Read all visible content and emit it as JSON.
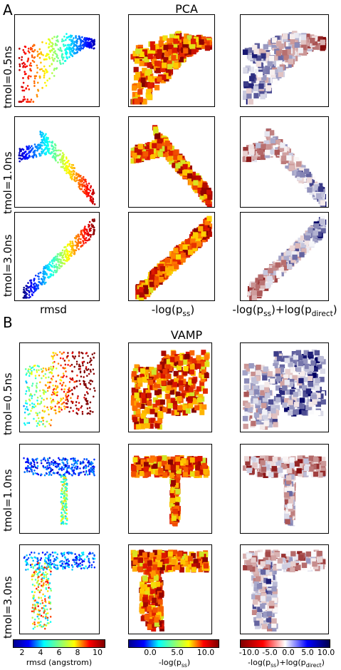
{
  "figure": {
    "panel_a": {
      "letter": "A",
      "title": "PCA"
    },
    "panel_b": {
      "letter": "B",
      "title": "VAMP"
    },
    "row_labels": [
      "tmol=0.5ns",
      "tmol=1.0ns",
      "tmol=3.0ns"
    ],
    "pca_col_labels": {
      "col1": "rmsd",
      "col2": "-log(p",
      "col2_sub": "ss",
      "col2_end": ")",
      "col3_a": "-log(p",
      "col3_a_sub": "ss",
      "col3_b": ")+log(p",
      "col3_b_sub": "direct",
      "col3_end": ")"
    },
    "colorbars": [
      {
        "label": "rmsd (angstrom)",
        "ticks": [
          "2",
          "4",
          "6",
          "8",
          "10"
        ],
        "colormap": "jet"
      },
      {
        "label_main": "-log(p",
        "label_sub": "ss",
        "label_end": ")",
        "ticks": [
          "0.0",
          "5.0",
          "10.0"
        ],
        "colormap": "jet"
      },
      {
        "label_main": "-log(p",
        "label_sub": "ss",
        "label_mid": ")+log(p",
        "label_sub2": "direct",
        "label_end": ")",
        "ticks": [
          "-10.0",
          "-5.0",
          "0.0",
          "5.0",
          "10.0"
        ],
        "colormap": "seismic_r"
      }
    ]
  },
  "chart_data": [
    {
      "type": "scatter",
      "section": "PCA",
      "row": "tmol=0.5ns",
      "color_by": "rmsd",
      "description_shape": "fan"
    },
    {
      "type": "heatmap",
      "section": "PCA",
      "row": "tmol=0.5ns",
      "quantity": "-log(pss)"
    },
    {
      "type": "heatmap",
      "section": "PCA",
      "row": "tmol=0.5ns",
      "quantity": "-log(pss)+log(pdirect)"
    },
    {
      "type": "scatter",
      "section": "PCA",
      "row": "tmol=1.0ns",
      "color_by": "rmsd"
    },
    {
      "type": "heatmap",
      "section": "PCA",
      "row": "tmol=1.0ns",
      "quantity": "-log(pss)"
    },
    {
      "type": "heatmap",
      "section": "PCA",
      "row": "tmol=1.0ns",
      "quantity": "-log(pss)+log(pdirect)"
    },
    {
      "type": "scatter",
      "section": "PCA",
      "row": "tmol=3.0ns",
      "color_by": "rmsd"
    },
    {
      "type": "heatmap",
      "section": "PCA",
      "row": "tmol=3.0ns",
      "quantity": "-log(pss)"
    },
    {
      "type": "heatmap",
      "section": "PCA",
      "row": "tmol=3.0ns",
      "quantity": "-log(pss)+log(pdirect)"
    },
    {
      "type": "scatter",
      "section": "VAMP",
      "row": "tmol=0.5ns",
      "color_by": "rmsd"
    },
    {
      "type": "heatmap",
      "section": "VAMP",
      "row": "tmol=0.5ns",
      "quantity": "-log(pss)"
    },
    {
      "type": "heatmap",
      "section": "VAMP",
      "row": "tmol=0.5ns",
      "quantity": "-log(pss)+log(pdirect)"
    },
    {
      "type": "scatter",
      "section": "VAMP",
      "row": "tmol=1.0ns",
      "color_by": "rmsd"
    },
    {
      "type": "heatmap",
      "section": "VAMP",
      "row": "tmol=1.0ns",
      "quantity": "-log(pss)"
    },
    {
      "type": "heatmap",
      "section": "VAMP",
      "row": "tmol=1.0ns",
      "quantity": "-log(pss)+log(pdirect)"
    },
    {
      "type": "scatter",
      "section": "VAMP",
      "row": "tmol=3.0ns",
      "color_by": "rmsd"
    },
    {
      "type": "heatmap",
      "section": "VAMP",
      "row": "tmol=3.0ns",
      "quantity": "-log(pss)"
    },
    {
      "type": "heatmap",
      "section": "VAMP",
      "row": "tmol=3.0ns",
      "quantity": "-log(pss)+log(pdirect)"
    }
  ]
}
